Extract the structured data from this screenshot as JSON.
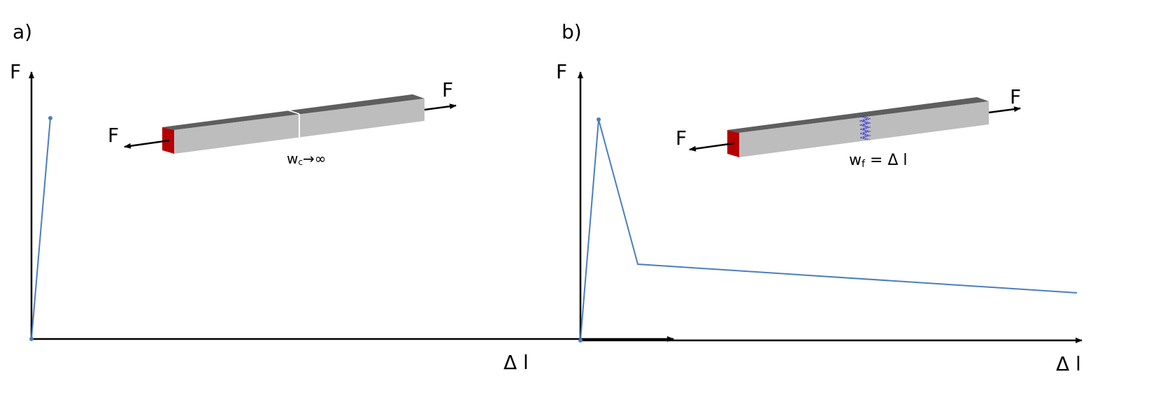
{
  "panels": [
    {
      "label": "a)",
      "y_axis": "F",
      "x_axis": "Δ l",
      "force_left": "F",
      "force_right": "F",
      "crack_label_main": "w",
      "crack_label_sub": "c",
      "crack_label_rest": "→∞"
    },
    {
      "label": "b)",
      "y_axis": "F",
      "x_axis": "Δ l",
      "force_left": "F",
      "force_right": "F",
      "crack_label_main": "w",
      "crack_label_sub": "f",
      "crack_label_rest": " = Δ l"
    }
  ],
  "colors": {
    "curve": "#4a7ebf",
    "bar_top": "#5e5e5e",
    "bar_side": "#bdbdbd",
    "bar_end": "#b50000",
    "spring": "#3333dd"
  }
}
